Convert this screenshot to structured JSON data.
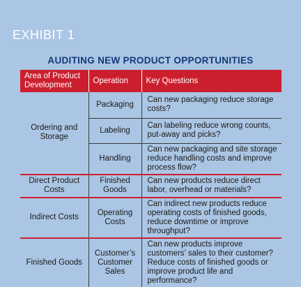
{
  "exhibit_label": "EXHIBIT 1",
  "title": "AUDITING NEW PRODUCT OPPORTUNITIES",
  "table": {
    "headers": [
      "Area of Product Development",
      "Operation",
      "Key Questions"
    ],
    "groups": [
      {
        "area": "Ordering and Storage",
        "rows": [
          {
            "operation": "Packaging",
            "question": "Can new packaging reduce storage costs?"
          },
          {
            "operation": "Labeling",
            "question": "Can labeling reduce wrong counts, put-away and picks?"
          },
          {
            "operation": "Handling",
            "question": "Can new packaging and site storage reduce handling costs and improve process flow?"
          }
        ]
      },
      {
        "area": "Direct Product Costs",
        "rows": [
          {
            "operation": "Finished Goods",
            "question": "Can new products reduce direct labor, overhead or materials?"
          }
        ]
      },
      {
        "area": "Indirect Costs",
        "rows": [
          {
            "operation": "Operating Costs",
            "question": "Can indirect new products reduce operating costs of finished goods, reduce downtime or improve throughput?"
          }
        ]
      },
      {
        "area": "Finished Goods",
        "rows": [
          {
            "operation": "Customer’s Customer Sales",
            "question": "Can new products improve customers’ sales to their customer? Reduce costs of finished goods or improve product life and performance?"
          }
        ]
      }
    ]
  }
}
